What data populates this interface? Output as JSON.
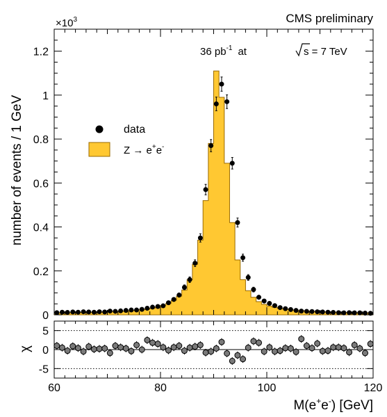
{
  "header": {
    "label": "CMS preliminary",
    "lumi_prefix": "36 pb",
    "lumi_exp": "-1",
    "lumi_mid": "at",
    "sqrt_s": "s = 7 TeV"
  },
  "chart_data": {
    "type": "histogram",
    "x_axis": {
      "label_base": "M(e",
      "label_sup1": "+",
      "label_mid": "e",
      "label_sup2": "-",
      "label_end": ") [GeV]",
      "range": [
        60,
        120
      ],
      "ticks": [
        "60",
        "80",
        "100",
        "120"
      ]
    },
    "y_axis": {
      "label": "number of events / 1 GeV",
      "range": [
        0,
        1300
      ],
      "multiplier": "×10",
      "multiplier_exp": "3",
      "ticks": [
        "0",
        "0.2",
        "0.4",
        "0.6",
        "0.8",
        "1",
        "1.2"
      ]
    },
    "legend": {
      "placement": "upper-left",
      "entries": [
        {
          "label": "data"
        },
        {
          "label": "Z → e",
          "sup1": "+",
          "mid": "e",
          "sup2": "-"
        }
      ]
    },
    "bin_edges": [
      60,
      61,
      62,
      63,
      64,
      65,
      66,
      67,
      68,
      69,
      70,
      71,
      72,
      73,
      74,
      75,
      76,
      77,
      78,
      79,
      80,
      81,
      82,
      83,
      84,
      85,
      86,
      87,
      88,
      89,
      90,
      91,
      92,
      93,
      94,
      95,
      96,
      97,
      98,
      99,
      100,
      101,
      102,
      103,
      104,
      105,
      106,
      107,
      108,
      109,
      110,
      111,
      112,
      113,
      114,
      115,
      116,
      117,
      118,
      119,
      120
    ],
    "mc_values": [
      8,
      9,
      9,
      10,
      10,
      11,
      11,
      12,
      12,
      13,
      14,
      15,
      16,
      17,
      19,
      21,
      23,
      26,
      30,
      36,
      43,
      52,
      66,
      85,
      113,
      160,
      230,
      340,
      520,
      780,
      1110,
      990,
      690,
      420,
      250,
      160,
      110,
      80,
      60,
      48,
      40,
      34,
      29,
      26,
      23,
      21,
      19,
      17,
      16,
      15,
      14,
      13,
      12,
      11,
      11,
      10,
      10,
      9,
      9,
      9
    ],
    "data_x": [
      60.5,
      61.5,
      62.5,
      63.5,
      64.5,
      65.5,
      66.5,
      67.5,
      68.5,
      69.5,
      70.5,
      71.5,
      72.5,
      73.5,
      74.5,
      75.5,
      76.5,
      77.5,
      78.5,
      79.5,
      80.5,
      81.5,
      82.5,
      83.5,
      84.5,
      85.5,
      86.5,
      87.5,
      88.5,
      89.5,
      90.5,
      91.5,
      92.5,
      93.5,
      94.5,
      95.5,
      96.5,
      97.5,
      98.5,
      99.5,
      100.5,
      101.5,
      102.5,
      103.5,
      104.5,
      105.5,
      106.5,
      107.5,
      108.5,
      109.5,
      110.5,
      111.5,
      112.5,
      113.5,
      114.5,
      115.5,
      116.5,
      117.5,
      118.5,
      119.5
    ],
    "data_values": [
      10,
      12,
      11,
      13,
      12,
      14,
      13,
      12,
      14,
      13,
      17,
      16,
      18,
      20,
      22,
      22,
      25,
      30,
      35,
      38,
      41,
      55,
      70,
      90,
      125,
      160,
      235,
      350,
      570,
      770,
      960,
      1050,
      970,
      690,
      420,
      260,
      170,
      115,
      80,
      63,
      52,
      42,
      33,
      28,
      24,
      20,
      17,
      16,
      15,
      14,
      13,
      12,
      11,
      10,
      9,
      10,
      9,
      9,
      8,
      7
    ],
    "ratio_panel": {
      "ylabel": "χ",
      "range": [
        -7.5,
        7.5
      ],
      "ticks": [
        "5",
        "0",
        "-5"
      ],
      "ref_lines": [
        5,
        -5
      ],
      "values": [
        1.0,
        0.5,
        -0.3,
        0.9,
        0.4,
        -0.5,
        0.8,
        0.1,
        0.2,
        0.3,
        -0.9,
        1.0,
        0.6,
        0.3,
        -0.4,
        1.2,
        0.0,
        2.5,
        1.8,
        1.5,
        0.6,
        -0.2,
        0.6,
        1.0,
        -0.3,
        0.5,
        0.8,
        1.2,
        -0.8,
        -0.5,
        0.3,
        2.0,
        -1.0,
        -3.0,
        -1.5,
        -2.5,
        0.5,
        2.2,
        1.8,
        -0.5,
        0.6,
        -0.5,
        -0.3,
        0.4,
        0.3,
        -0.6,
        2.8,
        1.0,
        0.4,
        1.6,
        -0.4,
        -0.3,
        0.6,
        0.6,
        0.4,
        -0.7,
        1.2,
        0.3,
        -0.9,
        1.5
      ]
    }
  }
}
